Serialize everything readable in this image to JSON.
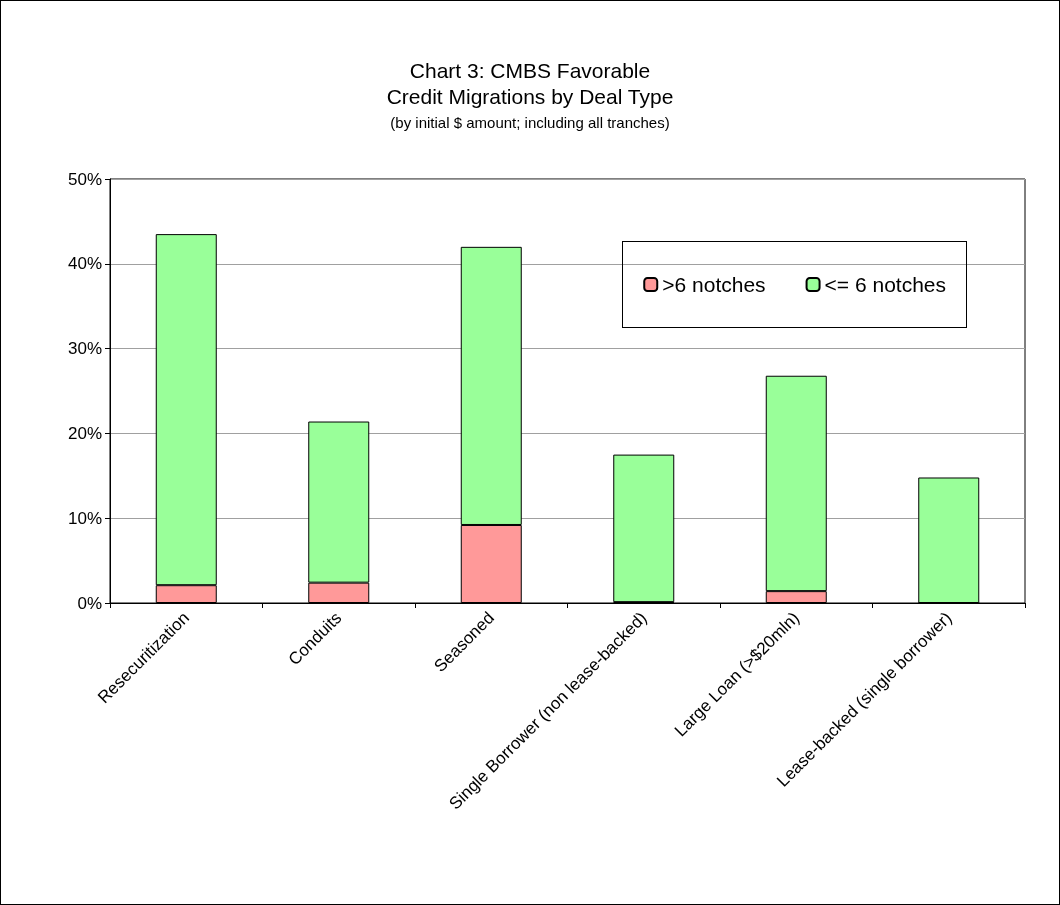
{
  "chart_data": {
    "type": "bar",
    "title": "Chart 3: CMBS Favorable\nCredit Migrations by Deal Type",
    "subtitle": "(by initial $ amount; including all tranches)",
    "categories": [
      "Resecuritization",
      "Conduits",
      "Seasoned",
      "Single Borrower (non lease-backed)",
      "Large Loan (>$20mln)",
      "Lease-backed (single borrower)"
    ],
    "series": [
      {
        "name": ">6 notches",
        "color": "#ff9999",
        "values": [
          2.1,
          2.4,
          9.2,
          0.1,
          1.4,
          0
        ]
      },
      {
        "name": "<= 6 notches",
        "color": "#99ff99",
        "values": [
          41.4,
          19.0,
          32.8,
          17.4,
          25.4,
          14.8
        ]
      }
    ],
    "stacked": true,
    "ylim": [
      0,
      50
    ],
    "yticks": [
      {
        "value": 0,
        "label": "0%"
      },
      {
        "value": 10,
        "label": "10%"
      },
      {
        "value": 20,
        "label": "20%"
      },
      {
        "value": 30,
        "label": "30%"
      },
      {
        "value": 40,
        "label": "40%"
      },
      {
        "value": 50,
        "label": "50%"
      }
    ],
    "grid": "y",
    "legend": "top right"
  }
}
